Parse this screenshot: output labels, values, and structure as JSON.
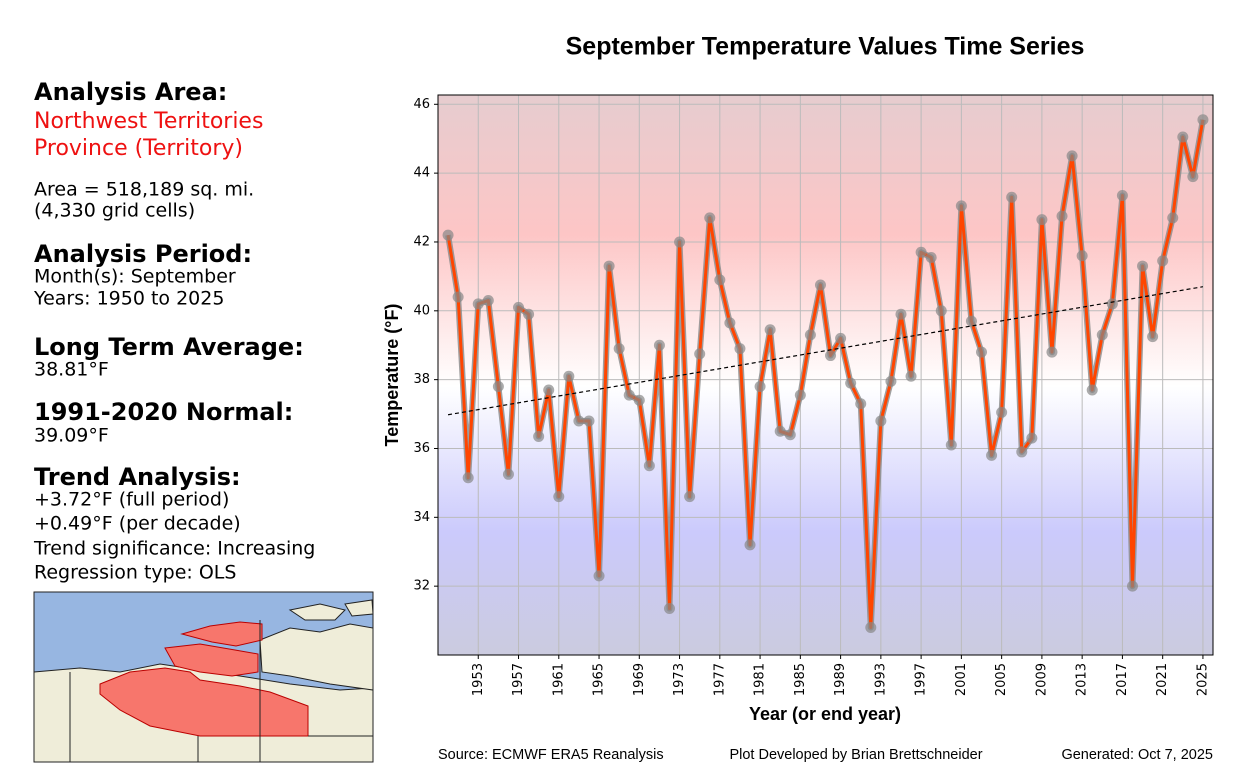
{
  "panel": {
    "area_heading": "Analysis Area:",
    "area_name_lines": [
      "Northwest Territories",
      "Province (Territory)"
    ],
    "area_lines": [
      "Area = 518,189 sq. mi.",
      "(4,330 grid cells)"
    ],
    "period_heading": "Analysis Period:",
    "period_lines": [
      "Month(s): September",
      "Years: 1950 to 2025"
    ],
    "lta_heading": "Long Term Average:",
    "lta_value": "38.81°F",
    "normal_heading": "1991-2020 Normal:",
    "normal_value": "39.09°F",
    "trend_heading": "Trend Analysis:",
    "trend_lines": [
      "+3.72°F (full period)",
      "+0.49°F (per decade)",
      "Trend significance: Increasing",
      "Regression type: OLS"
    ]
  },
  "chart_data": {
    "type": "line",
    "title": "September Temperature Values Time Series",
    "x_label": "Year (or end year)",
    "y_label": "Temperature (°F)",
    "x": [
      1950,
      1951,
      1952,
      1953,
      1954,
      1955,
      1956,
      1957,
      1958,
      1959,
      1960,
      1961,
      1962,
      1963,
      1964,
      1965,
      1966,
      1967,
      1968,
      1969,
      1970,
      1971,
      1972,
      1973,
      1974,
      1975,
      1976,
      1977,
      1978,
      1979,
      1980,
      1981,
      1982,
      1983,
      1984,
      1985,
      1986,
      1987,
      1988,
      1989,
      1990,
      1991,
      1992,
      1993,
      1994,
      1995,
      1996,
      1997,
      1998,
      1999,
      2000,
      2001,
      2002,
      2003,
      2004,
      2005,
      2006,
      2007,
      2008,
      2009,
      2010,
      2011,
      2012,
      2013,
      2014,
      2015,
      2016,
      2017,
      2018,
      2019,
      2020,
      2021,
      2022,
      2023,
      2024,
      2025
    ],
    "values": [
      42.2,
      40.4,
      35.15,
      40.2,
      40.3,
      37.8,
      35.25,
      40.1,
      39.9,
      36.35,
      37.7,
      34.6,
      38.1,
      36.8,
      36.8,
      32.3,
      41.3,
      38.9,
      37.55,
      37.4,
      35.5,
      39.0,
      31.35,
      42.0,
      34.6,
      38.75,
      42.7,
      40.9,
      39.65,
      38.9,
      33.2,
      37.8,
      39.45,
      36.5,
      36.4,
      37.55,
      39.3,
      40.75,
      38.7,
      39.2,
      37.9,
      37.3,
      30.8,
      36.8,
      37.95,
      39.9,
      38.1,
      41.7,
      41.55,
      40.0,
      36.1,
      43.05,
      39.7,
      38.8,
      35.8,
      37.05,
      43.3,
      35.9,
      36.3,
      42.65,
      38.8,
      42.75,
      44.5,
      41.6,
      37.7,
      39.3,
      40.2,
      43.35,
      32.0,
      41.3,
      39.25,
      41.45,
      42.7,
      45.05,
      43.9,
      45.55
    ],
    "color": "#ff4500",
    "marker_color": "#888888",
    "trend": {
      "x": [
        1950,
        2025
      ],
      "values": [
        36.98,
        40.7
      ],
      "color": "#000000"
    },
    "xlim": [
      1949,
      2026
    ],
    "ylim": [
      30.0,
      46.27
    ],
    "xticks": [
      1953,
      1957,
      1961,
      1965,
      1969,
      1973,
      1977,
      1981,
      1985,
      1989,
      1993,
      1997,
      2001,
      2005,
      2009,
      2013,
      2017,
      2021,
      2025
    ],
    "yticks": [
      32,
      34,
      36,
      38,
      40,
      42,
      44,
      46
    ],
    "grid": true
  },
  "footer": {
    "source": "Source: ECMWF ERA5 Reanalysis",
    "developer": "Plot Developed by Brian Brettschneider",
    "generated": "Generated: Oct 7, 2025"
  }
}
